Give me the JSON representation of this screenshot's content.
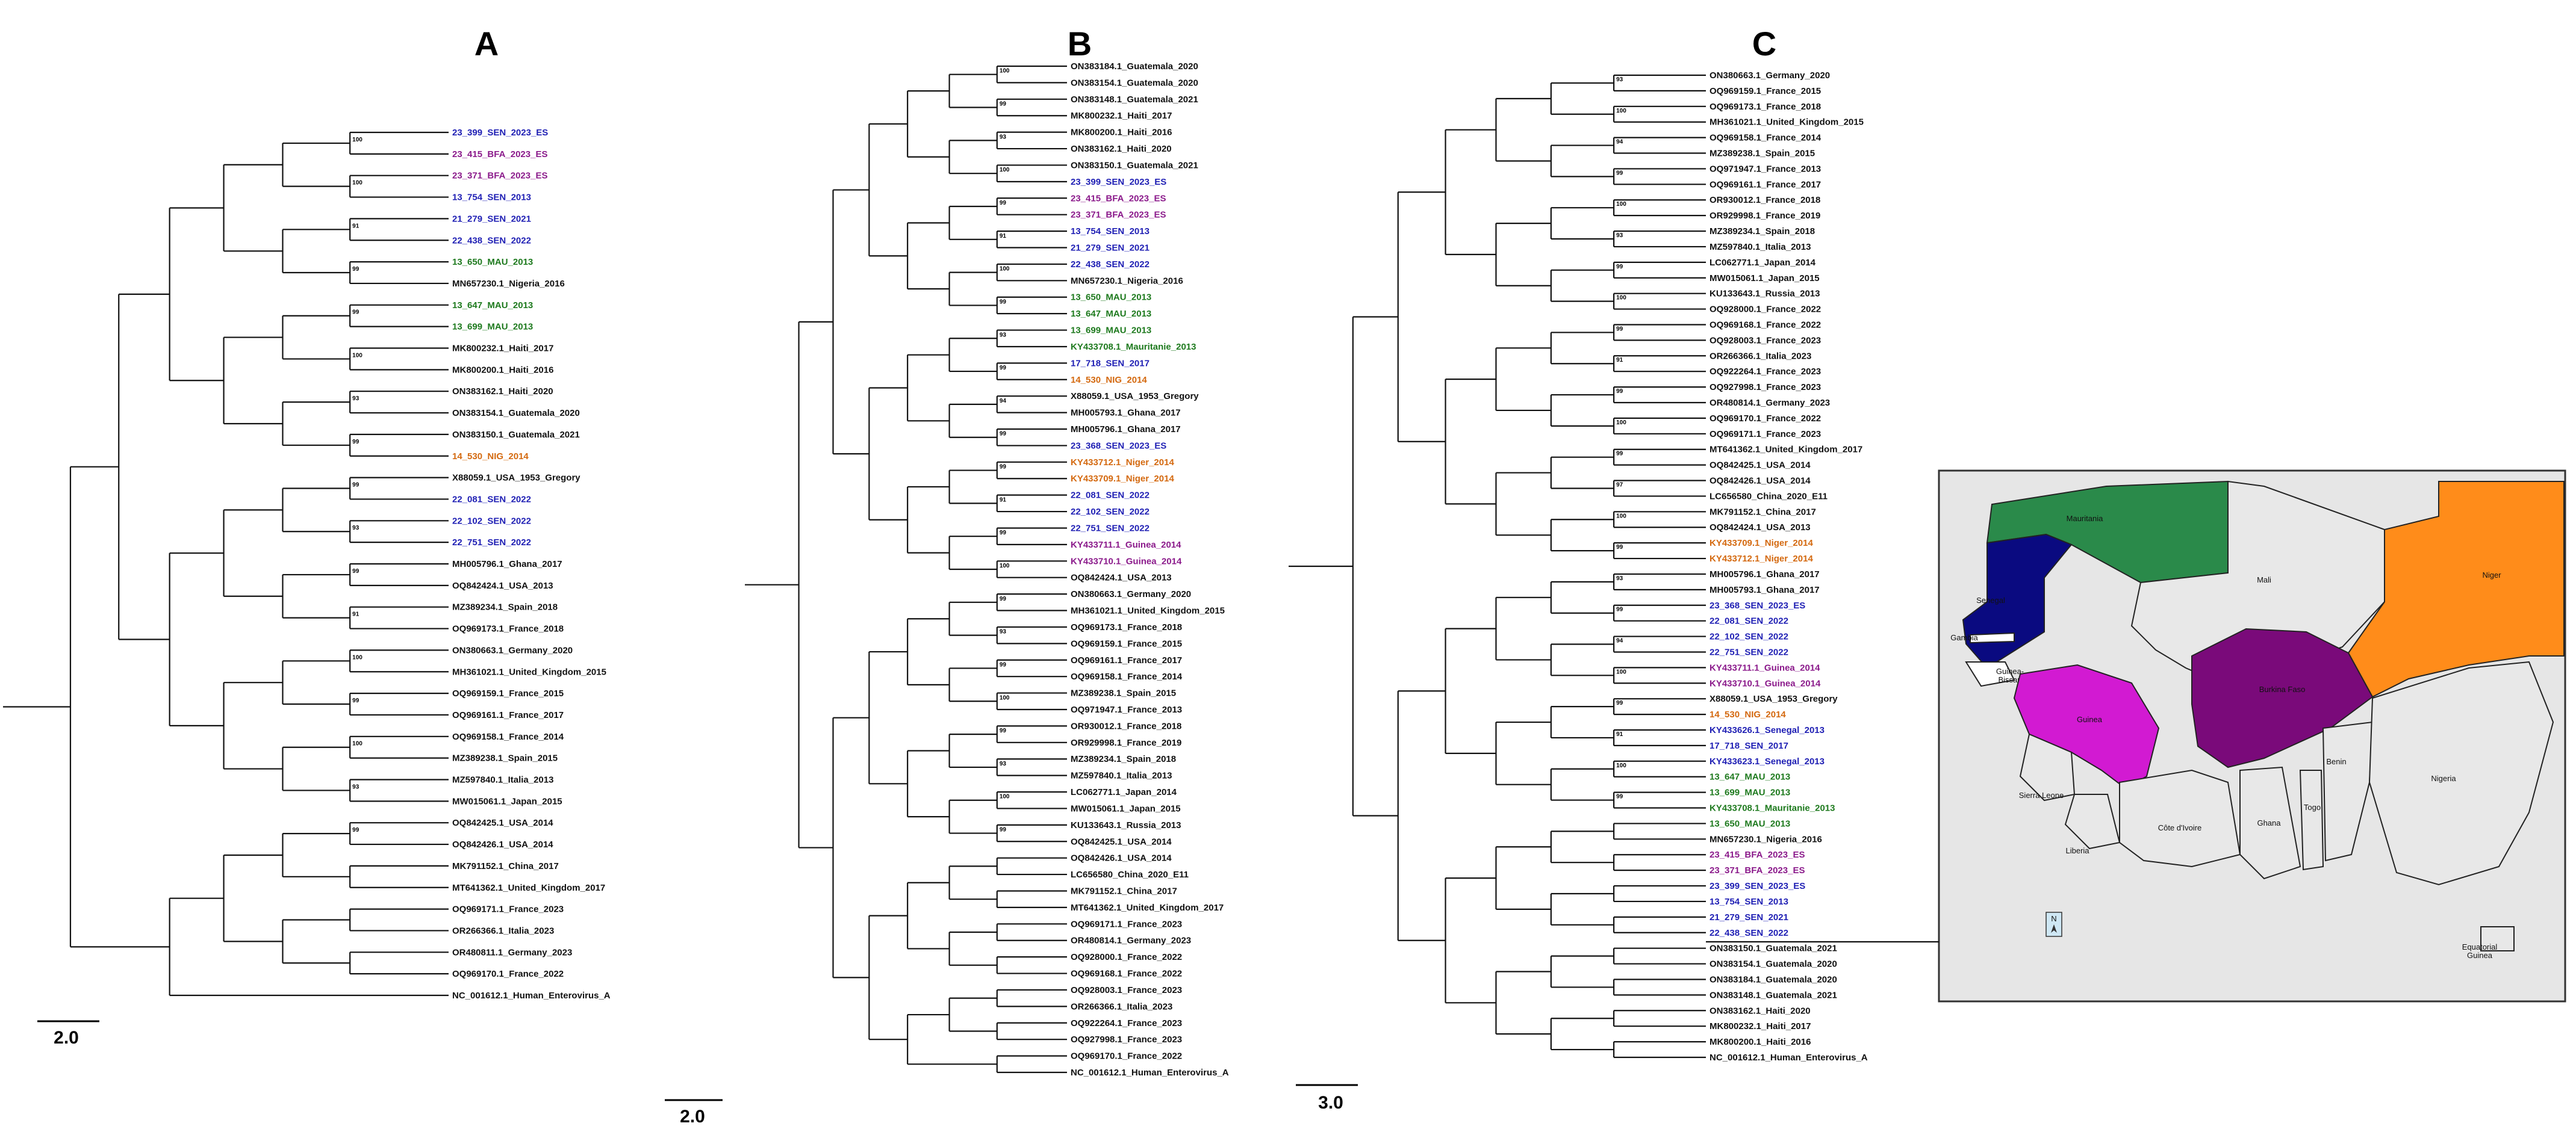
{
  "figure": {
    "panels": [
      {
        "letter": "A",
        "scale_bar": "2.0",
        "leaves": [
          {
            "label": "23_399_SEN_2023_ES",
            "group": "SEN"
          },
          {
            "label": "23_415_BFA_2023_ES",
            "group": "BFA"
          },
          {
            "label": "23_371_BFA_2023_ES",
            "group": "BFA"
          },
          {
            "label": "13_754_SEN_2013",
            "group": "SEN"
          },
          {
            "label": "21_279_SEN_2021",
            "group": "SEN"
          },
          {
            "label": "22_438_SEN_2022",
            "group": "SEN"
          },
          {
            "label": "13_650_MAU_2013",
            "group": "MAU"
          },
          {
            "label": "MN657230.1_Nigeria_2016",
            "group": "ref"
          },
          {
            "label": "13_647_MAU_2013",
            "group": "MAU"
          },
          {
            "label": "13_699_MAU_2013",
            "group": "MAU"
          },
          {
            "label": "MK800232.1_Haiti_2017",
            "group": "ref"
          },
          {
            "label": "MK800200.1_Haiti_2016",
            "group": "ref"
          },
          {
            "label": "ON383162.1_Haiti_2020",
            "group": "ref"
          },
          {
            "label": "ON383154.1_Guatemala_2020",
            "group": "ref"
          },
          {
            "label": "ON383150.1_Guatemala_2021",
            "group": "ref"
          },
          {
            "label": "14_530_NIG_2014",
            "group": "NIG"
          },
          {
            "label": "X88059.1_USA_1953_Gregory",
            "group": "ref"
          },
          {
            "label": "22_081_SEN_2022",
            "group": "SEN"
          },
          {
            "label": "22_102_SEN_2022",
            "group": "SEN"
          },
          {
            "label": "22_751_SEN_2022",
            "group": "SEN"
          },
          {
            "label": "MH005796.1_Ghana_2017",
            "group": "ref"
          },
          {
            "label": "OQ842424.1_USA_2013",
            "group": "ref"
          },
          {
            "label": "MZ389234.1_Spain_2018",
            "group": "ref"
          },
          {
            "label": "OQ969173.1_France_2018",
            "group": "ref"
          },
          {
            "label": "ON380663.1_Germany_2020",
            "group": "ref"
          },
          {
            "label": "MH361021.1_United_Kingdom_2015",
            "group": "ref"
          },
          {
            "label": "OQ969159.1_France_2015",
            "group": "ref"
          },
          {
            "label": "OQ969161.1_France_2017",
            "group": "ref"
          },
          {
            "label": "OQ969158.1_France_2014",
            "group": "ref"
          },
          {
            "label": "MZ389238.1_Spain_2015",
            "group": "ref"
          },
          {
            "label": "MZ597840.1_Italia_2013",
            "group": "ref"
          },
          {
            "label": "MW015061.1_Japan_2015",
            "group": "ref"
          },
          {
            "label": "OQ842425.1_USA_2014",
            "group": "ref"
          },
          {
            "label": "OQ842426.1_USA_2014",
            "group": "ref"
          },
          {
            "label": "MK791152.1_China_2017",
            "group": "ref"
          },
          {
            "label": "MT641362.1_United_Kingdom_2017",
            "group": "ref"
          },
          {
            "label": "OQ969171.1_France_2023",
            "group": "ref"
          },
          {
            "label": "OR266366.1_Italia_2023",
            "group": "ref"
          },
          {
            "label": "OR480811.1_Germany_2023",
            "group": "ref"
          },
          {
            "label": "OQ969170.1_France_2022",
            "group": "ref"
          },
          {
            "label": "NC_001612.1_Human_Enterovirus_A",
            "group": "ref"
          }
        ],
        "bootstraps": [
          "100",
          "100",
          "91",
          "99",
          "99",
          "100",
          "93",
          "99",
          "99",
          "93",
          "99",
          "91",
          "100",
          "99",
          "100",
          "93",
          "99"
        ]
      },
      {
        "letter": "B",
        "scale_bar": "2.0",
        "leaves": [
          {
            "label": "ON383184.1_Guatemala_2020",
            "group": "ref"
          },
          {
            "label": "ON383154.1_Guatemala_2020",
            "group": "ref"
          },
          {
            "label": "ON383148.1_Guatemala_2021",
            "group": "ref"
          },
          {
            "label": "MK800232.1_Haiti_2017",
            "group": "ref"
          },
          {
            "label": "MK800200.1_Haiti_2016",
            "group": "ref"
          },
          {
            "label": "ON383162.1_Haiti_2020",
            "group": "ref"
          },
          {
            "label": "ON383150.1_Guatemala_2021",
            "group": "ref"
          },
          {
            "label": "23_399_SEN_2023_ES",
            "group": "SEN"
          },
          {
            "label": "23_415_BFA_2023_ES",
            "group": "BFA"
          },
          {
            "label": "23_371_BFA_2023_ES",
            "group": "BFA"
          },
          {
            "label": "13_754_SEN_2013",
            "group": "SEN"
          },
          {
            "label": "21_279_SEN_2021",
            "group": "SEN"
          },
          {
            "label": "22_438_SEN_2022",
            "group": "SEN"
          },
          {
            "label": "MN657230.1_Nigeria_2016",
            "group": "ref"
          },
          {
            "label": "13_650_MAU_2013",
            "group": "MAU"
          },
          {
            "label": "13_647_MAU_2013",
            "group": "MAU"
          },
          {
            "label": "13_699_MAU_2013",
            "group": "MAU"
          },
          {
            "label": "KY433708.1_Mauritanie_2013",
            "group": "MAU"
          },
          {
            "label": "17_718_SEN_2017",
            "group": "SEN"
          },
          {
            "label": "14_530_NIG_2014",
            "group": "NIG"
          },
          {
            "label": "X88059.1_USA_1953_Gregory",
            "group": "ref"
          },
          {
            "label": "MH005793.1_Ghana_2017",
            "group": "ref"
          },
          {
            "label": "MH005796.1_Ghana_2017",
            "group": "ref"
          },
          {
            "label": "23_368_SEN_2023_ES",
            "group": "SEN"
          },
          {
            "label": "KY433712.1_Niger_2014",
            "group": "NIG"
          },
          {
            "label": "KY433709.1_Niger_2014",
            "group": "NIG"
          },
          {
            "label": "22_081_SEN_2022",
            "group": "SEN"
          },
          {
            "label": "22_102_SEN_2022",
            "group": "SEN"
          },
          {
            "label": "22_751_SEN_2022",
            "group": "SEN"
          },
          {
            "label": "KY433711.1_Guinea_2014",
            "group": "BFA"
          },
          {
            "label": "KY433710.1_Guinea_2014",
            "group": "BFA"
          },
          {
            "label": "OQ842424.1_USA_2013",
            "group": "ref"
          },
          {
            "label": "ON380663.1_Germany_2020",
            "group": "ref"
          },
          {
            "label": "MH361021.1_United_Kingdom_2015",
            "group": "ref"
          },
          {
            "label": "OQ969173.1_France_2018",
            "group": "ref"
          },
          {
            "label": "OQ969159.1_France_2015",
            "group": "ref"
          },
          {
            "label": "OQ969161.1_France_2017",
            "group": "ref"
          },
          {
            "label": "OQ969158.1_France_2014",
            "group": "ref"
          },
          {
            "label": "MZ389238.1_Spain_2015",
            "group": "ref"
          },
          {
            "label": "OQ971947.1_France_2013",
            "group": "ref"
          },
          {
            "label": "OR930012.1_France_2018",
            "group": "ref"
          },
          {
            "label": "OR929998.1_France_2019",
            "group": "ref"
          },
          {
            "label": "MZ389234.1_Spain_2018",
            "group": "ref"
          },
          {
            "label": "MZ597840.1_Italia_2013",
            "group": "ref"
          },
          {
            "label": "LC062771.1_Japan_2014",
            "group": "ref"
          },
          {
            "label": "MW015061.1_Japan_2015",
            "group": "ref"
          },
          {
            "label": "KU133643.1_Russia_2013",
            "group": "ref"
          },
          {
            "label": "OQ842425.1_USA_2014",
            "group": "ref"
          },
          {
            "label": "OQ842426.1_USA_2014",
            "group": "ref"
          },
          {
            "label": "LC656580_China_2020_E11",
            "group": "ref"
          },
          {
            "label": "MK791152.1_China_2017",
            "group": "ref"
          },
          {
            "label": "MT641362.1_United_Kingdom_2017",
            "group": "ref"
          },
          {
            "label": "OQ969171.1_France_2023",
            "group": "ref"
          },
          {
            "label": "OR480814.1_Germany_2023",
            "group": "ref"
          },
          {
            "label": "OQ928000.1_France_2022",
            "group": "ref"
          },
          {
            "label": "OQ969168.1_France_2022",
            "group": "ref"
          },
          {
            "label": "OQ928003.1_France_2023",
            "group": "ref"
          },
          {
            "label": "OR266366.1_Italia_2023",
            "group": "ref"
          },
          {
            "label": "OQ922264.1_France_2023",
            "group": "ref"
          },
          {
            "label": "OQ927998.1_France_2023",
            "group": "ref"
          },
          {
            "label": "OQ969170.1_France_2022",
            "group": "ref"
          },
          {
            "label": "NC_001612.1_Human_Enterovirus_A",
            "group": "ref"
          }
        ],
        "bootstraps": [
          "100",
          "99",
          "93",
          "100",
          "99",
          "91",
          "100",
          "99",
          "93",
          "99",
          "94",
          "99",
          "99",
          "91",
          "99",
          "100",
          "99",
          "93",
          "99",
          "100",
          "99",
          "93",
          "100",
          "99"
        ]
      },
      {
        "letter": "C",
        "scale_bar": "3.0",
        "leaves": [
          {
            "label": "ON380663.1_Germany_2020",
            "group": "ref"
          },
          {
            "label": "OQ969159.1_France_2015",
            "group": "ref"
          },
          {
            "label": "OQ969173.1_France_2018",
            "group": "ref"
          },
          {
            "label": "MH361021.1_United_Kingdom_2015",
            "group": "ref"
          },
          {
            "label": "OQ969158.1_France_2014",
            "group": "ref"
          },
          {
            "label": "MZ389238.1_Spain_2015",
            "group": "ref"
          },
          {
            "label": "OQ971947.1_France_2013",
            "group": "ref"
          },
          {
            "label": "OQ969161.1_France_2017",
            "group": "ref"
          },
          {
            "label": "OR930012.1_France_2018",
            "group": "ref"
          },
          {
            "label": "OR929998.1_France_2019",
            "group": "ref"
          },
          {
            "label": "MZ389234.1_Spain_2018",
            "group": "ref"
          },
          {
            "label": "MZ597840.1_Italia_2013",
            "group": "ref"
          },
          {
            "label": "LC062771.1_Japan_2014",
            "group": "ref"
          },
          {
            "label": "MW015061.1_Japan_2015",
            "group": "ref"
          },
          {
            "label": "KU133643.1_Russia_2013",
            "group": "ref"
          },
          {
            "label": "OQ928000.1_France_2022",
            "group": "ref"
          },
          {
            "label": "OQ969168.1_France_2022",
            "group": "ref"
          },
          {
            "label": "OQ928003.1_France_2023",
            "group": "ref"
          },
          {
            "label": "OR266366.1_Italia_2023",
            "group": "ref"
          },
          {
            "label": "OQ922264.1_France_2023",
            "group": "ref"
          },
          {
            "label": "OQ927998.1_France_2023",
            "group": "ref"
          },
          {
            "label": "OR480814.1_Germany_2023",
            "group": "ref"
          },
          {
            "label": "OQ969170.1_France_2022",
            "group": "ref"
          },
          {
            "label": "OQ969171.1_France_2023",
            "group": "ref"
          },
          {
            "label": "MT641362.1_United_Kingdom_2017",
            "group": "ref"
          },
          {
            "label": "OQ842425.1_USA_2014",
            "group": "ref"
          },
          {
            "label": "OQ842426.1_USA_2014",
            "group": "ref"
          },
          {
            "label": "LC656580_China_2020_E11",
            "group": "ref"
          },
          {
            "label": "MK791152.1_China_2017",
            "group": "ref"
          },
          {
            "label": "OQ842424.1_USA_2013",
            "group": "ref"
          },
          {
            "label": "KY433709.1_Niger_2014",
            "group": "NIG"
          },
          {
            "label": "KY433712.1_Niger_2014",
            "group": "NIG"
          },
          {
            "label": "MH005796.1_Ghana_2017",
            "group": "ref"
          },
          {
            "label": "MH005793.1_Ghana_2017",
            "group": "ref"
          },
          {
            "label": "23_368_SEN_2023_ES",
            "group": "SEN"
          },
          {
            "label": "22_081_SEN_2022",
            "group": "SEN"
          },
          {
            "label": "22_102_SEN_2022",
            "group": "SEN"
          },
          {
            "label": "22_751_SEN_2022",
            "group": "SEN"
          },
          {
            "label": "KY433711.1_Guinea_2014",
            "group": "BFA"
          },
          {
            "label": "KY433710.1_Guinea_2014",
            "group": "BFA"
          },
          {
            "label": "X88059.1_USA_1953_Gregory",
            "group": "ref"
          },
          {
            "label": "14_530_NIG_2014",
            "group": "NIG"
          },
          {
            "label": "KY433626.1_Senegal_2013",
            "group": "SEN"
          },
          {
            "label": "17_718_SEN_2017",
            "group": "SEN"
          },
          {
            "label": "KY433623.1_Senegal_2013",
            "group": "SEN"
          },
          {
            "label": "13_647_MAU_2013",
            "group": "MAU"
          },
          {
            "label": "13_699_MAU_2013",
            "group": "MAU"
          },
          {
            "label": "KY433708.1_Mauritanie_2013",
            "group": "MAU"
          },
          {
            "label": "13_650_MAU_2013",
            "group": "MAU"
          },
          {
            "label": "MN657230.1_Nigeria_2016",
            "group": "ref"
          },
          {
            "label": "23_415_BFA_2023_ES",
            "group": "BFA"
          },
          {
            "label": "23_371_BFA_2023_ES",
            "group": "BFA"
          },
          {
            "label": "23_399_SEN_2023_ES",
            "group": "SEN"
          },
          {
            "label": "13_754_SEN_2013",
            "group": "SEN"
          },
          {
            "label": "21_279_SEN_2021",
            "group": "SEN"
          },
          {
            "label": "22_438_SEN_2022",
            "group": "SEN"
          },
          {
            "label": "ON383150.1_Guatemala_2021",
            "group": "ref"
          },
          {
            "label": "ON383154.1_Guatemala_2020",
            "group": "ref"
          },
          {
            "label": "ON383184.1_Guatemala_2020",
            "group": "ref"
          },
          {
            "label": "ON383148.1_Guatemala_2021",
            "group": "ref"
          },
          {
            "label": "ON383162.1_Haiti_2020",
            "group": "ref"
          },
          {
            "label": "MK800232.1_Haiti_2017",
            "group": "ref"
          },
          {
            "label": "MK800200.1_Haiti_2016",
            "group": "ref"
          },
          {
            "label": "NC_001612.1_Human_Enterovirus_A",
            "group": "ref"
          }
        ],
        "bootstraps": [
          "93",
          "100",
          "94",
          "99",
          "100",
          "93",
          "99",
          "100",
          "99",
          "91",
          "99",
          "100",
          "99",
          "97",
          "100",
          "99",
          "93",
          "99",
          "94",
          "100",
          "99",
          "91",
          "100",
          "99"
        ]
      }
    ],
    "colors": {
      "SEN": "#1f1fb4",
      "BFA": "#8b1a8b",
      "MAU": "#1e7a1e",
      "NIG": "#d4690f",
      "ref": "#111111"
    },
    "map": {
      "countries": [
        {
          "name": "Mauritania",
          "color": "#2a8a4a"
        },
        {
          "name": "Mali",
          "color": "#e8e8e8"
        },
        {
          "name": "Niger",
          "color": "#ff8c1a"
        },
        {
          "name": "Senegal",
          "color": "#0a0a80"
        },
        {
          "name": "Gambia",
          "color": "#ffffff"
        },
        {
          "name": "Guinea-\nBissau",
          "color": "#ffffff"
        },
        {
          "name": "Guinea",
          "color": "#d21ad2"
        },
        {
          "name": "Burkina Faso",
          "color": "#7a0a7a"
        },
        {
          "name": "Sierra Leone",
          "color": "#e8e8e8"
        },
        {
          "name": "Liberia",
          "color": "#e8e8e8"
        },
        {
          "name": "Côte d'Ivoire",
          "color": "#e8e8e8"
        },
        {
          "name": "Ghana",
          "color": "#e8e8e8"
        },
        {
          "name": "Togo",
          "color": "#e8e8e8"
        },
        {
          "name": "Benin",
          "color": "#e8e8e8"
        },
        {
          "name": "Nigeria",
          "color": "#e8e8e8"
        },
        {
          "name": "Equatorial\nGuinea",
          "color": "#e8e8e8"
        }
      ],
      "compass": "N"
    }
  }
}
